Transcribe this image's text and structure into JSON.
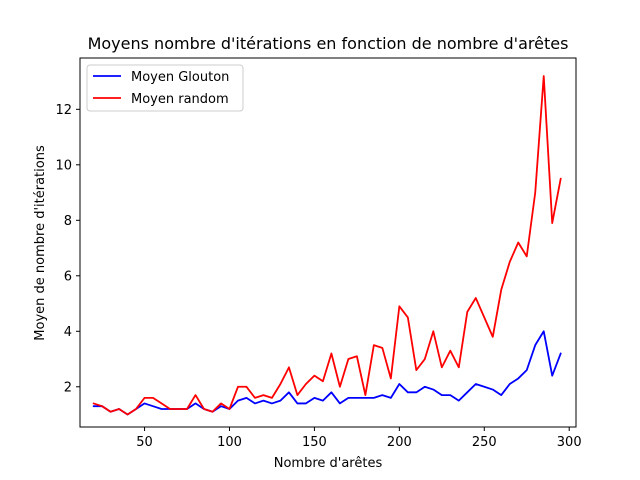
{
  "chart_data": {
    "type": "line",
    "title": "Moyens nombre d'itérations en fonction de nombre d'arêtes",
    "xlabel": "Nombre d'arêtes",
    "ylabel": "Moyen de nombre d'itérations",
    "xlim": [
      12,
      304
    ],
    "ylim": [
      0.55,
      13.85
    ],
    "xticks": [
      50,
      100,
      150,
      200,
      250,
      300
    ],
    "yticks": [
      2,
      4,
      6,
      8,
      10,
      12
    ],
    "grid": false,
    "legend_position": "upper-left",
    "x": [
      20,
      25,
      30,
      35,
      40,
      45,
      50,
      55,
      60,
      65,
      70,
      75,
      80,
      85,
      90,
      95,
      100,
      105,
      110,
      115,
      120,
      125,
      130,
      135,
      140,
      145,
      150,
      155,
      160,
      165,
      170,
      175,
      180,
      185,
      190,
      195,
      200,
      205,
      210,
      215,
      220,
      225,
      230,
      235,
      240,
      245,
      250,
      255,
      260,
      265,
      270,
      275,
      280,
      285,
      290,
      295
    ],
    "series": [
      {
        "name": "Moyen Glouton",
        "color": "#0000ff",
        "values": [
          1.3,
          1.3,
          1.1,
          1.2,
          1.0,
          1.2,
          1.4,
          1.3,
          1.2,
          1.2,
          1.2,
          1.2,
          1.4,
          1.2,
          1.1,
          1.3,
          1.2,
          1.5,
          1.6,
          1.4,
          1.5,
          1.4,
          1.5,
          1.8,
          1.4,
          1.4,
          1.6,
          1.5,
          1.8,
          1.4,
          1.6,
          1.6,
          1.6,
          1.6,
          1.7,
          1.6,
          2.1,
          1.8,
          1.8,
          2.0,
          1.9,
          1.7,
          1.7,
          1.5,
          1.8,
          2.1,
          2.0,
          1.9,
          1.7,
          2.1,
          2.3,
          2.6,
          3.5,
          4.0,
          2.4,
          3.2
        ]
      },
      {
        "name": "Moyen random",
        "color": "#ff0000",
        "values": [
          1.4,
          1.3,
          1.1,
          1.2,
          1.0,
          1.2,
          1.6,
          1.6,
          1.4,
          1.2,
          1.2,
          1.2,
          1.7,
          1.2,
          1.1,
          1.4,
          1.2,
          2.0,
          2.0,
          1.6,
          1.7,
          1.6,
          2.1,
          2.7,
          1.7,
          2.1,
          2.4,
          2.2,
          3.2,
          2.0,
          3.0,
          3.1,
          1.7,
          3.5,
          3.4,
          2.3,
          4.9,
          4.5,
          2.6,
          3.0,
          4.0,
          2.7,
          3.3,
          2.7,
          4.7,
          5.2,
          4.5,
          3.8,
          5.5,
          6.5,
          7.2,
          6.7,
          9.0,
          13.2,
          7.9,
          9.5
        ]
      }
    ]
  }
}
